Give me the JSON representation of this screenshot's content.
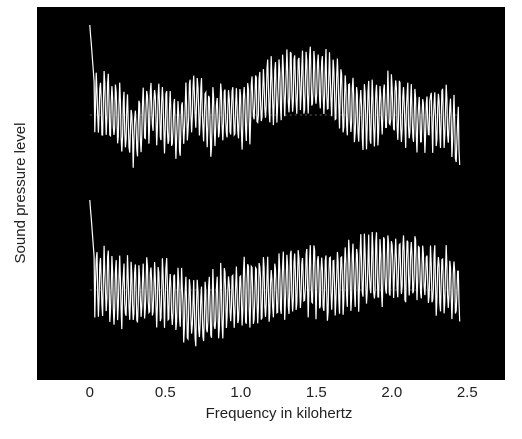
{
  "chart_data": {
    "type": "line",
    "title": "",
    "xlabel": "Frequency in kilohertz",
    "ylabel": "Sound pressure level",
    "xlim": [
      -0.35,
      2.75
    ],
    "x_ticks": [
      0,
      0.5,
      1.0,
      1.5,
      2.0,
      2.5
    ],
    "x_tick_labels": [
      "0",
      "0.5",
      "1.0",
      "1.5",
      "2.0",
      "2.5"
    ],
    "grid": false,
    "legend": "none",
    "background": "#000000",
    "trace_color": "#ffffff",
    "panels": [
      {
        "position": "top",
        "x_range": [
          0,
          2.45
        ],
        "peak_frequency_khz": 0.065,
        "note": "dense oscillating spectrum trace, envelope swells between ~1.2 and 1.7 kHz",
        "x": [
          0.0,
          0.05,
          0.1,
          0.2,
          0.3,
          0.4,
          0.5,
          0.6,
          0.7,
          0.8,
          0.9,
          1.0,
          1.1,
          1.2,
          1.3,
          1.4,
          1.5,
          1.6,
          1.7,
          1.8,
          1.9,
          2.0,
          2.1,
          2.2,
          2.3,
          2.4,
          2.45
        ],
        "y": [
          0.0,
          0.1,
          0.15,
          -0.05,
          -0.2,
          0.1,
          -0.05,
          -0.15,
          0.2,
          -0.1,
          0.05,
          0.0,
          0.15,
          0.25,
          0.3,
          0.35,
          0.35,
          0.3,
          0.1,
          0.0,
          0.05,
          0.1,
          0.0,
          -0.05,
          0.0,
          -0.1,
          -0.3
        ]
      },
      {
        "position": "bottom",
        "x_range": [
          0,
          2.45
        ],
        "peak_frequency_khz": 0.05,
        "note": "dense oscillating spectrum trace, dips near 0.6–0.9 kHz and rises toward 2.0–2.2 kHz",
        "x": [
          0.0,
          0.05,
          0.1,
          0.2,
          0.3,
          0.4,
          0.5,
          0.6,
          0.7,
          0.8,
          0.9,
          1.0,
          1.1,
          1.2,
          1.3,
          1.4,
          1.5,
          1.6,
          1.7,
          1.8,
          1.9,
          2.0,
          2.1,
          2.2,
          2.3,
          2.4,
          2.45
        ],
        "y": [
          0.0,
          0.1,
          0.05,
          0.0,
          -0.05,
          0.0,
          -0.05,
          -0.15,
          -0.25,
          -0.2,
          -0.1,
          -0.05,
          0.0,
          -0.05,
          0.05,
          0.1,
          0.1,
          0.05,
          0.15,
          0.2,
          0.2,
          0.25,
          0.25,
          0.2,
          0.1,
          0.05,
          0.0
        ]
      }
    ]
  }
}
